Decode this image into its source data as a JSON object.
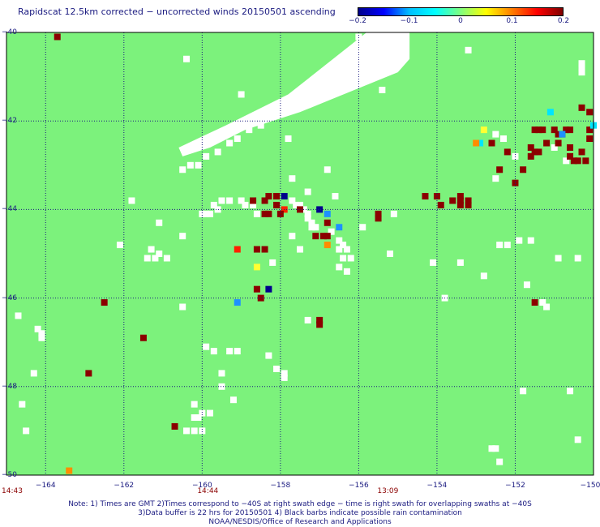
{
  "title": "Rapidscat 12.5km corrected − uncorrected winds 20150501 ascending",
  "colorbar": {
    "ticks": [
      "−0.2",
      "−0.1",
      "0",
      "0.1",
      "0.2"
    ],
    "stops": [
      "#00008b",
      "#0000ff",
      "#00bfff",
      "#00ffff",
      "#7fff7f",
      "#ffff00",
      "#ff7f00",
      "#ff0000",
      "#7f0000"
    ]
  },
  "map": {
    "lat_labels": [
      "−40",
      "−42",
      "−44",
      "−46",
      "−48",
      "−50"
    ],
    "lon_labels": [
      "−164",
      "−162",
      "−160",
      "−158",
      "−156",
      "−154",
      "−152",
      "−150"
    ],
    "lat_range": [
      -50,
      -40
    ],
    "lon_range": [
      -165,
      -150
    ],
    "background_color": "#7cf27c",
    "grid_color": "#1a1a80",
    "no_data_color": "#ffffff",
    "swath_gap": [
      [
        -155.8,
        -40
      ],
      [
        -154.7,
        -40
      ],
      [
        -154.7,
        -40.6
      ],
      [
        -155.0,
        -40.9
      ],
      [
        -157.5,
        -41.8
      ],
      [
        -158.9,
        -42.2
      ],
      [
        -159.8,
        -42.6
      ],
      [
        -160.5,
        -42.8
      ],
      [
        -160.6,
        -42.6
      ],
      [
        -159.4,
        -42.1
      ],
      [
        -157.8,
        -41.4
      ]
    ],
    "cell_colors": {
      "dr": "#8b0000",
      "r": "#ff2000",
      "o": "#ff8c00",
      "y": "#ffff33",
      "c": "#00e5ff",
      "b": "#1e90ff",
      "n": "#00008b",
      "w": "#ffffff"
    },
    "cells": [
      [
        "dr",
        -163.7,
        -40.1
      ],
      [
        "o",
        -163.4,
        -49.9
      ],
      [
        "dr",
        -162.5,
        -46.1
      ],
      [
        "dr",
        -161.5,
        -46.9
      ],
      [
        "dr",
        -160.7,
        -48.9
      ],
      [
        "dr",
        -162.9,
        -47.7
      ],
      [
        "r",
        -159.1,
        -44.9
      ],
      [
        "dr",
        -158.6,
        -44.9
      ],
      [
        "dr",
        -158.4,
        -44.9
      ],
      [
        "y",
        -158.6,
        -45.3
      ],
      [
        "dr",
        -158.6,
        -45.8
      ],
      [
        "n",
        -158.3,
        -45.8
      ],
      [
        "dr",
        -158.5,
        -46.0
      ],
      [
        "b",
        -159.1,
        -46.1
      ],
      [
        "dr",
        -158.7,
        -43.8
      ],
      [
        "dr",
        -158.4,
        -43.8
      ],
      [
        "dr",
        -158.3,
        -43.7
      ],
      [
        "dr",
        -158.1,
        -43.7
      ],
      [
        "n",
        -157.9,
        -43.7
      ],
      [
        "dr",
        -158.1,
        -43.9
      ],
      [
        "r",
        -157.9,
        -44.0
      ],
      [
        "dr",
        -157.5,
        -44.0
      ],
      [
        "dr",
        -158.0,
        -44.1
      ],
      [
        "dr",
        -158.3,
        -44.1
      ],
      [
        "dr",
        -158.4,
        -44.1
      ],
      [
        "n",
        -157.0,
        -44.0
      ],
      [
        "b",
        -156.8,
        -44.1
      ],
      [
        "dr",
        -156.8,
        -44.3
      ],
      [
        "b",
        -156.5,
        -44.4
      ],
      [
        "dr",
        -157.1,
        -44.6
      ],
      [
        "dr",
        -156.9,
        -44.6
      ],
      [
        "dr",
        -156.8,
        -44.6
      ],
      [
        "o",
        -156.8,
        -44.8
      ],
      [
        "dr",
        -157.0,
        -46.5
      ],
      [
        "dr",
        -157.0,
        -46.6
      ],
      [
        "dr",
        -155.5,
        -44.1
      ],
      [
        "dr",
        -155.5,
        -44.2
      ],
      [
        "dr",
        -154.3,
        -43.7
      ],
      [
        "dr",
        -154.0,
        -43.7
      ],
      [
        "dr",
        -153.9,
        -43.9
      ],
      [
        "dr",
        -153.6,
        -43.8
      ],
      [
        "dr",
        -153.4,
        -43.7
      ],
      [
        "dr",
        -153.4,
        -43.8
      ],
      [
        "dr",
        -153.4,
        -43.9
      ],
      [
        "dr",
        -153.2,
        -43.8
      ],
      [
        "dr",
        -153.2,
        -43.9
      ],
      [
        "dr",
        -152.4,
        -43.1
      ],
      [
        "dr",
        -152.2,
        -42.7
      ],
      [
        "dr",
        -152.0,
        -43.4
      ],
      [
        "dr",
        -151.8,
        -43.1
      ],
      [
        "dr",
        -151.6,
        -42.8
      ],
      [
        "dr",
        -151.6,
        -42.6
      ],
      [
        "dr",
        -151.5,
        -42.2
      ],
      [
        "dr",
        -151.4,
        -42.2
      ],
      [
        "dr",
        -151.3,
        -42.2
      ],
      [
        "dr",
        -151.5,
        -42.7
      ],
      [
        "dr",
        -151.4,
        -42.7
      ],
      [
        "dr",
        -151.2,
        -42.5
      ],
      [
        "dr",
        -151.0,
        -42.2
      ],
      [
        "dr",
        -150.9,
        -42.3
      ],
      [
        "dr",
        -150.9,
        -42.5
      ],
      [
        "dr",
        -150.8,
        -42.3
      ],
      [
        "dr",
        -150.7,
        -42.2
      ],
      [
        "dr",
        -150.6,
        -42.2
      ],
      [
        "dr",
        -150.6,
        -42.8
      ],
      [
        "dr",
        -150.5,
        -42.9
      ],
      [
        "dr",
        -150.4,
        -42.9
      ],
      [
        "dr",
        -150.6,
        -42.6
      ],
      [
        "dr",
        -150.3,
        -42.7
      ],
      [
        "dr",
        -150.1,
        -42.4
      ],
      [
        "dr",
        -150.1,
        -42.2
      ],
      [
        "dr",
        -150.1,
        -41.8
      ],
      [
        "dr",
        -150.3,
        -41.7
      ],
      [
        "dr",
        -150.2,
        -42.9
      ],
      [
        "dr",
        -151.5,
        -46.1
      ],
      [
        "dr",
        -152.6,
        -42.5
      ],
      [
        "y",
        -152.8,
        -42.2
      ],
      [
        "c",
        -152.9,
        -42.5
      ],
      [
        "o",
        -153.0,
        -42.5
      ],
      [
        "c",
        -151.1,
        -41.8
      ],
      [
        "b",
        -150.8,
        -42.3
      ],
      [
        "c",
        -150.0,
        -42.1
      ]
    ],
    "white_cells": [
      [
        -160.1,
        -43.0
      ],
      [
        -160.3,
        -43.0
      ],
      [
        -160.5,
        -43.1
      ],
      [
        -159.9,
        -42.8
      ],
      [
        -159.6,
        -42.7
      ],
      [
        -159.3,
        -42.5
      ],
      [
        -159.1,
        -42.4
      ],
      [
        -158.8,
        -42.2
      ],
      [
        -158.5,
        -42.1
      ],
      [
        -159.0,
        -41.4
      ],
      [
        -157.8,
        -42.4
      ],
      [
        -155.4,
        -41.3
      ],
      [
        -156.0,
        -40.1
      ],
      [
        -153.2,
        -40.4
      ],
      [
        -160.4,
        -40.6
      ],
      [
        -150.3,
        -40.8
      ],
      [
        -150.3,
        -40.7
      ],
      [
        -150.3,
        -40.9
      ],
      [
        -159.3,
        -43.8
      ],
      [
        -159.0,
        -43.8
      ],
      [
        -159.5,
        -43.8
      ],
      [
        -159.6,
        -44.0
      ],
      [
        -159.7,
        -43.9
      ],
      [
        -159.8,
        -44.1
      ],
      [
        -160.0,
        -44.1
      ],
      [
        -159.9,
        -44.1
      ],
      [
        -158.9,
        -43.9
      ],
      [
        -158.7,
        -43.9
      ],
      [
        -158.6,
        -44.1
      ],
      [
        -157.7,
        -43.8
      ],
      [
        -157.6,
        -43.9
      ],
      [
        -157.5,
        -43.9
      ],
      [
        -157.4,
        -44.0
      ],
      [
        -157.3,
        -44.1
      ],
      [
        -157.2,
        -44.3
      ],
      [
        -157.3,
        -44.2
      ],
      [
        -157.1,
        -44.4
      ],
      [
        -157.2,
        -44.4
      ],
      [
        -156.7,
        -44.5
      ],
      [
        -156.5,
        -44.7
      ],
      [
        -156.4,
        -44.8
      ],
      [
        -156.3,
        -44.9
      ],
      [
        -156.5,
        -44.9
      ],
      [
        -156.4,
        -45.1
      ],
      [
        -156.2,
        -45.1
      ],
      [
        -156.5,
        -45.3
      ],
      [
        -156.3,
        -45.4
      ],
      [
        -157.3,
        -43.6
      ],
      [
        -157.7,
        -43.3
      ],
      [
        -156.8,
        -43.1
      ],
      [
        -156.6,
        -43.7
      ],
      [
        -155.9,
        -44.4
      ],
      [
        -155.1,
        -44.1
      ],
      [
        -161.8,
        -43.8
      ],
      [
        -161.1,
        -44.3
      ],
      [
        -162.1,
        -44.8
      ],
      [
        -161.3,
        -44.9
      ],
      [
        -161.1,
        -45.0
      ],
      [
        -161.2,
        -45.1
      ],
      [
        -160.9,
        -45.1
      ],
      [
        -161.4,
        -45.1
      ],
      [
        -160.5,
        -44.6
      ],
      [
        -157.7,
        -44.6
      ],
      [
        -157.5,
        -44.9
      ],
      [
        -155.2,
        -45.0
      ],
      [
        -158.2,
        -45.2
      ],
      [
        -154.1,
        -45.2
      ],
      [
        -153.4,
        -45.2
      ],
      [
        -153.8,
        -46.0
      ],
      [
        -152.4,
        -44.8
      ],
      [
        -152.2,
        -44.8
      ],
      [
        -151.9,
        -44.7
      ],
      [
        -151.6,
        -44.7
      ],
      [
        -150.9,
        -45.1
      ],
      [
        -150.4,
        -45.1
      ],
      [
        -151.5,
        -46.1
      ],
      [
        -151.3,
        -46.1
      ],
      [
        -151.2,
        -46.2
      ],
      [
        -151.7,
        -45.7
      ],
      [
        -152.8,
        -45.5
      ],
      [
        -160.5,
        -46.2
      ],
      [
        -164.7,
        -46.4
      ],
      [
        -164.2,
        -46.7
      ],
      [
        -164.1,
        -46.8
      ],
      [
        -164.1,
        -46.9
      ],
      [
        -157.3,
        -46.5
      ],
      [
        -159.3,
        -47.2
      ],
      [
        -159.9,
        -47.1
      ],
      [
        -159.7,
        -47.2
      ],
      [
        -159.1,
        -47.2
      ],
      [
        -158.3,
        -47.3
      ],
      [
        -158.1,
        -47.6
      ],
      [
        -157.9,
        -47.7
      ],
      [
        -157.9,
        -47.8
      ],
      [
        -159.5,
        -47.7
      ],
      [
        -159.5,
        -48.0
      ],
      [
        -160.2,
        -48.4
      ],
      [
        -160.2,
        -48.7
      ],
      [
        -160.1,
        -48.7
      ],
      [
        -160.0,
        -48.6
      ],
      [
        -160.4,
        -49.0
      ],
      [
        -160.2,
        -49.0
      ],
      [
        -160.0,
        -49.0
      ],
      [
        -159.8,
        -48.6
      ],
      [
        -159.2,
        -48.3
      ],
      [
        -164.3,
        -47.7
      ],
      [
        -164.6,
        -48.4
      ],
      [
        -164.5,
        -49.0
      ],
      [
        -152.5,
        -49.4
      ],
      [
        -152.6,
        -49.4
      ],
      [
        -152.4,
        -49.7
      ],
      [
        -150.4,
        -49.2
      ],
      [
        -150.6,
        -48.1
      ],
      [
        -151.8,
        -48.1
      ],
      [
        -152.5,
        -42.3
      ],
      [
        -152.3,
        -42.4
      ],
      [
        -151.0,
        -42.6
      ],
      [
        -150.7,
        -42.9
      ],
      [
        -152.0,
        -42.8
      ],
      [
        -152.5,
        -43.3
      ]
    ]
  },
  "time_labels": [
    "14:43",
    "14:44",
    "13:09"
  ],
  "time_label_lons": [
    -165,
    -160,
    -155.4
  ],
  "notes": [
    "Note: 1) Times are GMT 2)Times correspond to −40S at right swath edge − time is right swath for overlapping swaths at −40S",
    "3)Data buffer is 22 hrs for 20150501 4) Black barbs indicate possible rain contamination",
    "NOAA/NESDIS/Office of Research and Applications"
  ]
}
